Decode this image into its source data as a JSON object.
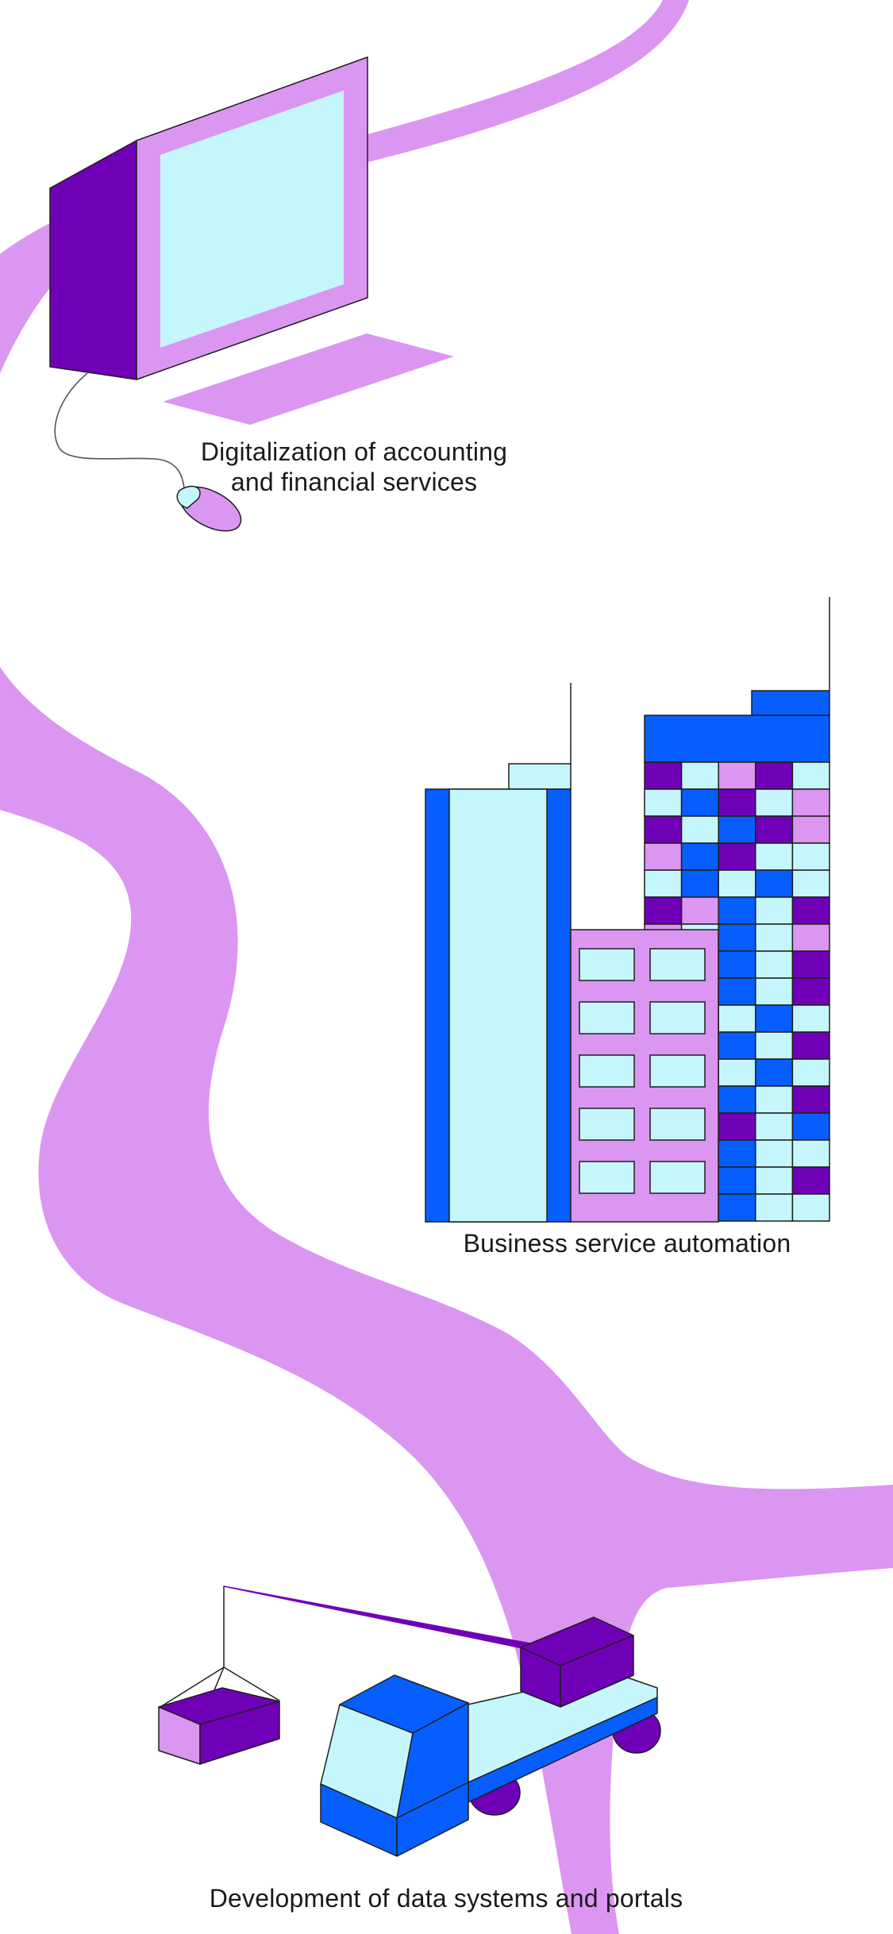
{
  "palette": {
    "lilac": "#db96f2",
    "violet": "#7000b8",
    "blue": "#075eff",
    "aqua": "#c5f6fc",
    "outline": "#1f1f1f",
    "background": "#ffffff"
  },
  "sections": [
    {
      "id": "accounting",
      "caption_line1": "Digitalization of accounting",
      "caption_line2": "and financial services",
      "illustration": "computer-monitor-icon"
    },
    {
      "id": "automation",
      "caption": "Business service automation",
      "illustration": "office-buildings-icon"
    },
    {
      "id": "portals",
      "caption": "Development of data systems and portals",
      "illustration": "crane-truck-icon"
    }
  ]
}
